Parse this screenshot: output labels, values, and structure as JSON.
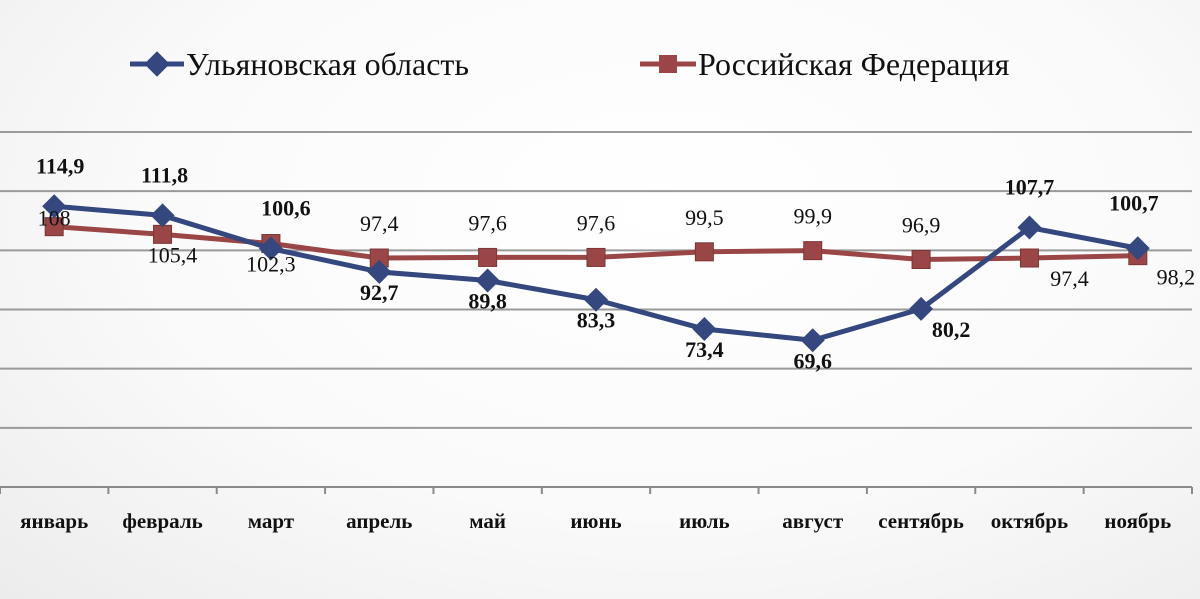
{
  "chart_data": {
    "type": "line",
    "categories": [
      "январь",
      "февраль",
      "март",
      "апрель",
      "май",
      "июнь",
      "июль",
      "август",
      "сентябрь",
      "октябрь",
      "ноябрь"
    ],
    "series": [
      {
        "name": "Ульяновская область",
        "values": [
          114.9,
          111.8,
          100.6,
          92.7,
          89.8,
          83.3,
          73.4,
          69.6,
          80.2,
          107.7,
          100.7
        ],
        "labels": [
          "114,9",
          "111,8",
          "100,6",
          "92,7",
          "89,8",
          "83,3",
          "73,4",
          "69,6",
          "80,2",
          "107,7",
          "100,7"
        ],
        "color": "#34477e",
        "marker": "diamond"
      },
      {
        "name": "Российская Федерация",
        "values": [
          108,
          105.4,
          102.3,
          97.4,
          97.6,
          97.6,
          99.5,
          99.9,
          96.9,
          97.4,
          98.2
        ],
        "labels": [
          "108",
          "105,4",
          "102,3",
          "97,4",
          "97,6",
          "97,6",
          "99,5",
          "99,9",
          "96,9",
          "97,4",
          "98,2"
        ],
        "color": "#9b4646",
        "marker": "square"
      }
    ],
    "ylim": [
      20,
      140
    ],
    "grid": true,
    "legend": "top"
  }
}
